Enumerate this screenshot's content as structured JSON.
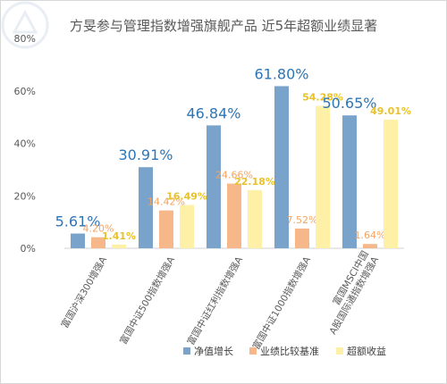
{
  "chart_data": {
    "type": "bar",
    "title": "方旻参与管理指数增强旗舰产品 近5年超额业绩显著",
    "categories": [
      "富国沪深300增强A",
      "富国中证500指数增强A",
      "富国中证红利指数增强A",
      "富国中证1000指数增强A",
      "富国MSCI中国A股国际通指数增强A"
    ],
    "category_lines": [
      [
        "富国沪深300增强A"
      ],
      [
        "富国中证500指数增强A"
      ],
      [
        "富国中证红利指数增强A"
      ],
      [
        "富国中证1000指数增强A"
      ],
      [
        "富国MSCI中国",
        "A股国际通指数增强A"
      ]
    ],
    "series": [
      {
        "name": "净值增长",
        "values": [
          5.61,
          30.91,
          46.84,
          61.8,
          50.65
        ],
        "labels": [
          "5.61%",
          "30.91%",
          "46.84%",
          "61.80%",
          "50.65%"
        ],
        "color": "#7aa3cc"
      },
      {
        "name": "业绩比较基准",
        "values": [
          4.2,
          14.42,
          24.66,
          7.52,
          1.64
        ],
        "labels": [
          "4.20%",
          "14.42%",
          "24.66%",
          "7.52%",
          "1.64%"
        ],
        "color": "#f6b88a"
      },
      {
        "name": "超额收益",
        "values": [
          1.41,
          16.49,
          22.18,
          54.28,
          49.01
        ],
        "labels": [
          "1.41%",
          "16.49%",
          "22.18%",
          "54.28%",
          "49.01%"
        ],
        "color": "#fff0a8"
      }
    ],
    "y_ticks": [
      "0%",
      "20%",
      "40%",
      "60%",
      "80%"
    ],
    "ylim": [
      0,
      80
    ],
    "grid": false,
    "legend_position": "bottom-right"
  },
  "colors": {
    "label_series_0": "#2e75b6",
    "label_series_1": "#f4a460",
    "label_series_2": "#e8c22a",
    "axis_text": "#595959"
  }
}
